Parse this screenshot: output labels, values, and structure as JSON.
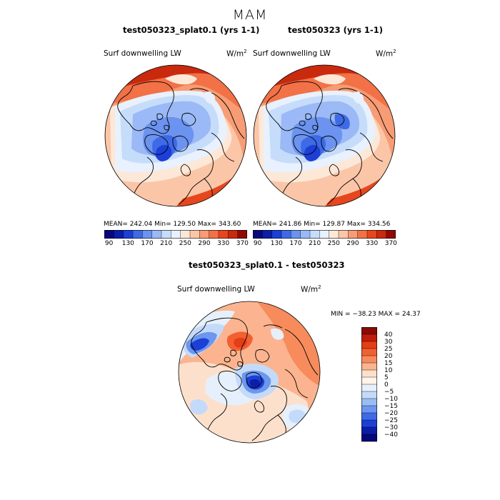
{
  "season": "MAM",
  "panels": {
    "left": {
      "title": "test050323_splat0.1 (yrs 1-1)",
      "variable": "Surf downwelling LW",
      "unit": "W/m",
      "unit_sup": "2",
      "stats": "MEAN= 242.04   Min= 129.50   Max= 343.60"
    },
    "right": {
      "title": "test050323 (yrs 1-1)",
      "variable": "Surf downwelling LW",
      "unit": "W/m",
      "unit_sup": "2",
      "stats": "MEAN= 241.86   Min= 129.87   Max= 334.56"
    },
    "diff": {
      "title": "test050323_splat0.1 - test050323",
      "variable": "Surf downwelling LW",
      "unit": "W/m",
      "unit_sup": "2",
      "minmax": "MIN = −38.23 MAX =  24.37"
    }
  },
  "chart_data": [
    {
      "type": "heatmap",
      "title": "test050323_splat0.1 (yrs 1-1)",
      "subtitle": "Surf downwelling LW",
      "projection": "north polar stereographic",
      "mean": 242.04,
      "min": 129.5,
      "max": 343.6,
      "colorbar_levels": [
        90,
        110,
        130,
        150,
        170,
        190,
        210,
        230,
        250,
        270,
        290,
        310,
        330,
        350,
        370
      ],
      "colorbar_labels": [
        "90",
        "130",
        "170",
        "210",
        "250",
        "290",
        "330",
        "370"
      ]
    },
    {
      "type": "heatmap",
      "title": "test050323 (yrs 1-1)",
      "subtitle": "Surf downwelling LW",
      "projection": "north polar stereographic",
      "mean": 241.86,
      "min": 129.87,
      "max": 334.56,
      "colorbar_levels": [
        90,
        110,
        130,
        150,
        170,
        190,
        210,
        230,
        250,
        270,
        290,
        310,
        330,
        350,
        370
      ],
      "colorbar_labels": [
        "90",
        "130",
        "170",
        "210",
        "250",
        "290",
        "330",
        "370"
      ]
    },
    {
      "type": "heatmap",
      "title": "test050323_splat0.1 - test050323",
      "subtitle": "Surf downwelling LW",
      "projection": "north polar stereographic",
      "min": -38.23,
      "max": 24.37,
      "colorbar_levels": [
        -40,
        -30,
        -25,
        -20,
        -15,
        -10,
        -5,
        0,
        5,
        10,
        15,
        20,
        25,
        30,
        40
      ],
      "colorbar_labels": [
        "40",
        "30",
        "25",
        "20",
        "15",
        "10",
        "5",
        "0",
        "−5",
        "−10",
        "−15",
        "−20",
        "−25",
        "−30",
        "−40"
      ]
    }
  ],
  "colors": {
    "abs_scale": [
      "#08087a",
      "#0a1ea8",
      "#1c3fd6",
      "#3f6ae6",
      "#6b93ef",
      "#9ab9f6",
      "#c6dcfb",
      "#e8f1fd",
      "#fde8d8",
      "#fbc6a8",
      "#f79c74",
      "#f27146",
      "#e6471f",
      "#c92a0e",
      "#8f0a05"
    ],
    "diff_scale": [
      "#8a0a05",
      "#c01d0a",
      "#e23e18",
      "#f26032",
      "#f78b5c",
      "#fbb48f",
      "#fde0cc",
      "#fff4ea",
      "#e6f0fc",
      "#c4dafa",
      "#9bbdf5",
      "#6c97ee",
      "#3f6ae6",
      "#1c3fd6",
      "#0a1ea8",
      "#08087a"
    ],
    "coastline": "#000000"
  }
}
